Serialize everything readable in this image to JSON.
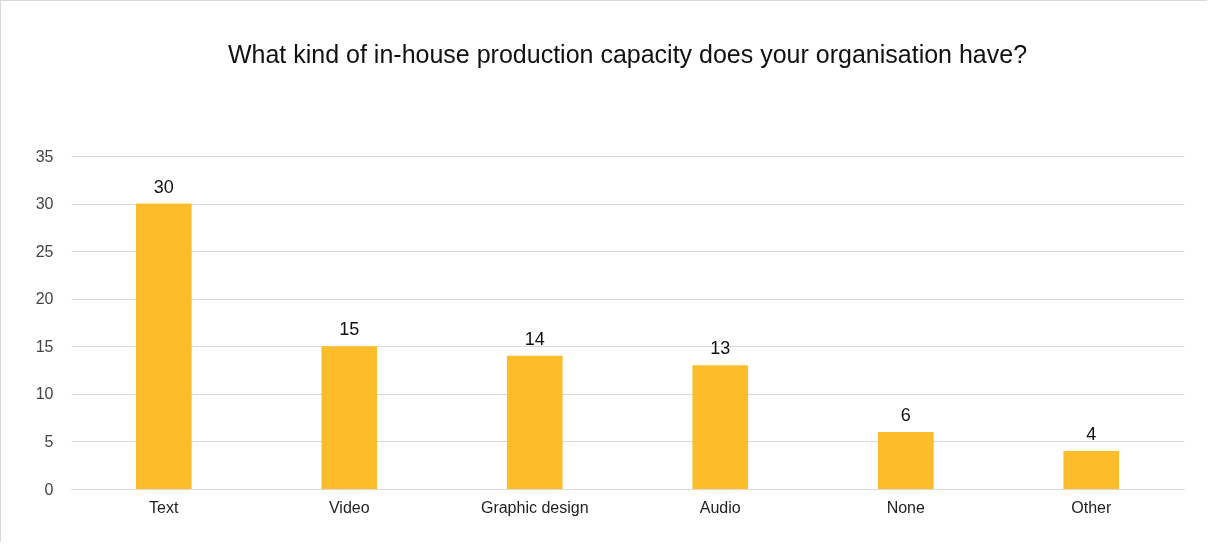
{
  "chart_data": {
    "type": "bar",
    "title": "What kind of in-house production capacity does your organisation have?",
    "categories": [
      "Text",
      "Video",
      "Graphic design",
      "Audio",
      "None",
      "Other"
    ],
    "values": [
      30,
      15,
      14,
      13,
      6,
      4
    ],
    "color": "#fdbd2b",
    "ylim": [
      0,
      35
    ],
    "yticks": [
      0,
      5,
      10,
      15,
      20,
      25,
      30,
      35
    ],
    "grid": true,
    "data_labels": true
  }
}
